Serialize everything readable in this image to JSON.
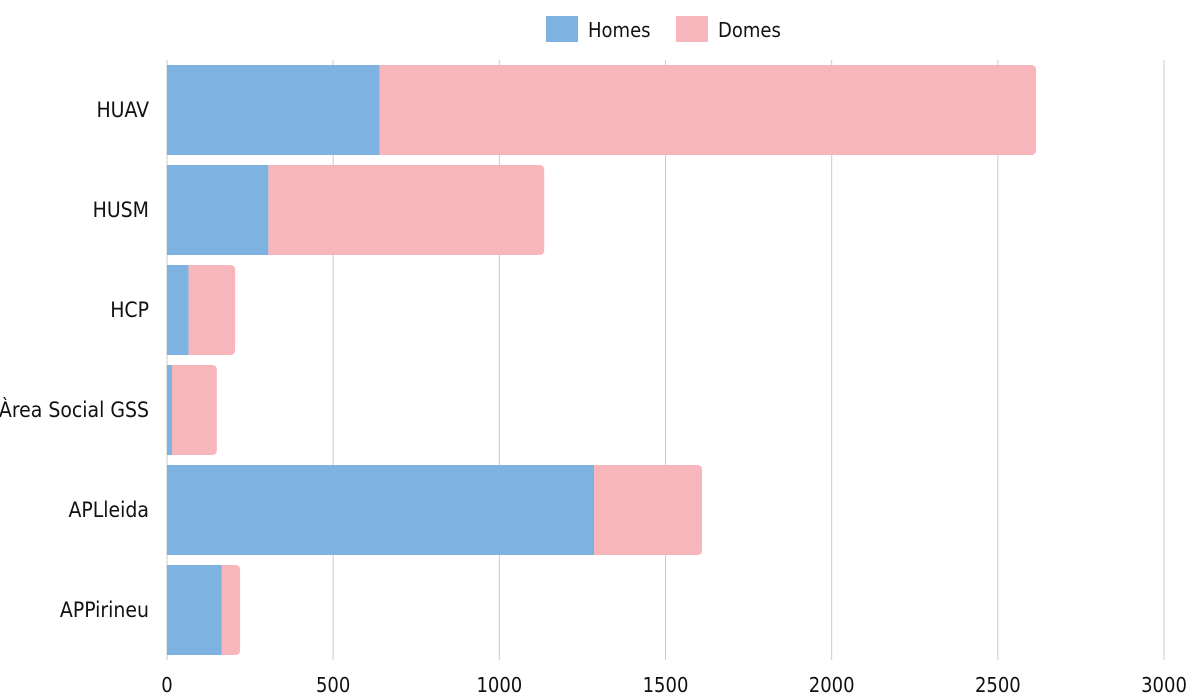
{
  "chart_data": {
    "type": "bar",
    "orientation": "horizontal",
    "stacked": true,
    "categories": [
      "HUAV",
      "HUSM",
      "HCP",
      "Àrea Social GSS",
      "APLleida",
      "APPirineu"
    ],
    "series": [
      {
        "name": "Homes",
        "color": "#7eb3e1",
        "values": [
          640,
          305,
          65,
          15,
          1285,
          165
        ]
      },
      {
        "name": "Domes",
        "color": "#f7b6bb",
        "values": [
          1975,
          830,
          140,
          135,
          325,
          55
        ]
      }
    ],
    "x_ticks": [
      0,
      500,
      1000,
      1500,
      2000,
      2500,
      3000
    ],
    "xlim": [
      0,
      3000
    ],
    "grid": "vertical",
    "legend": "top-center"
  }
}
